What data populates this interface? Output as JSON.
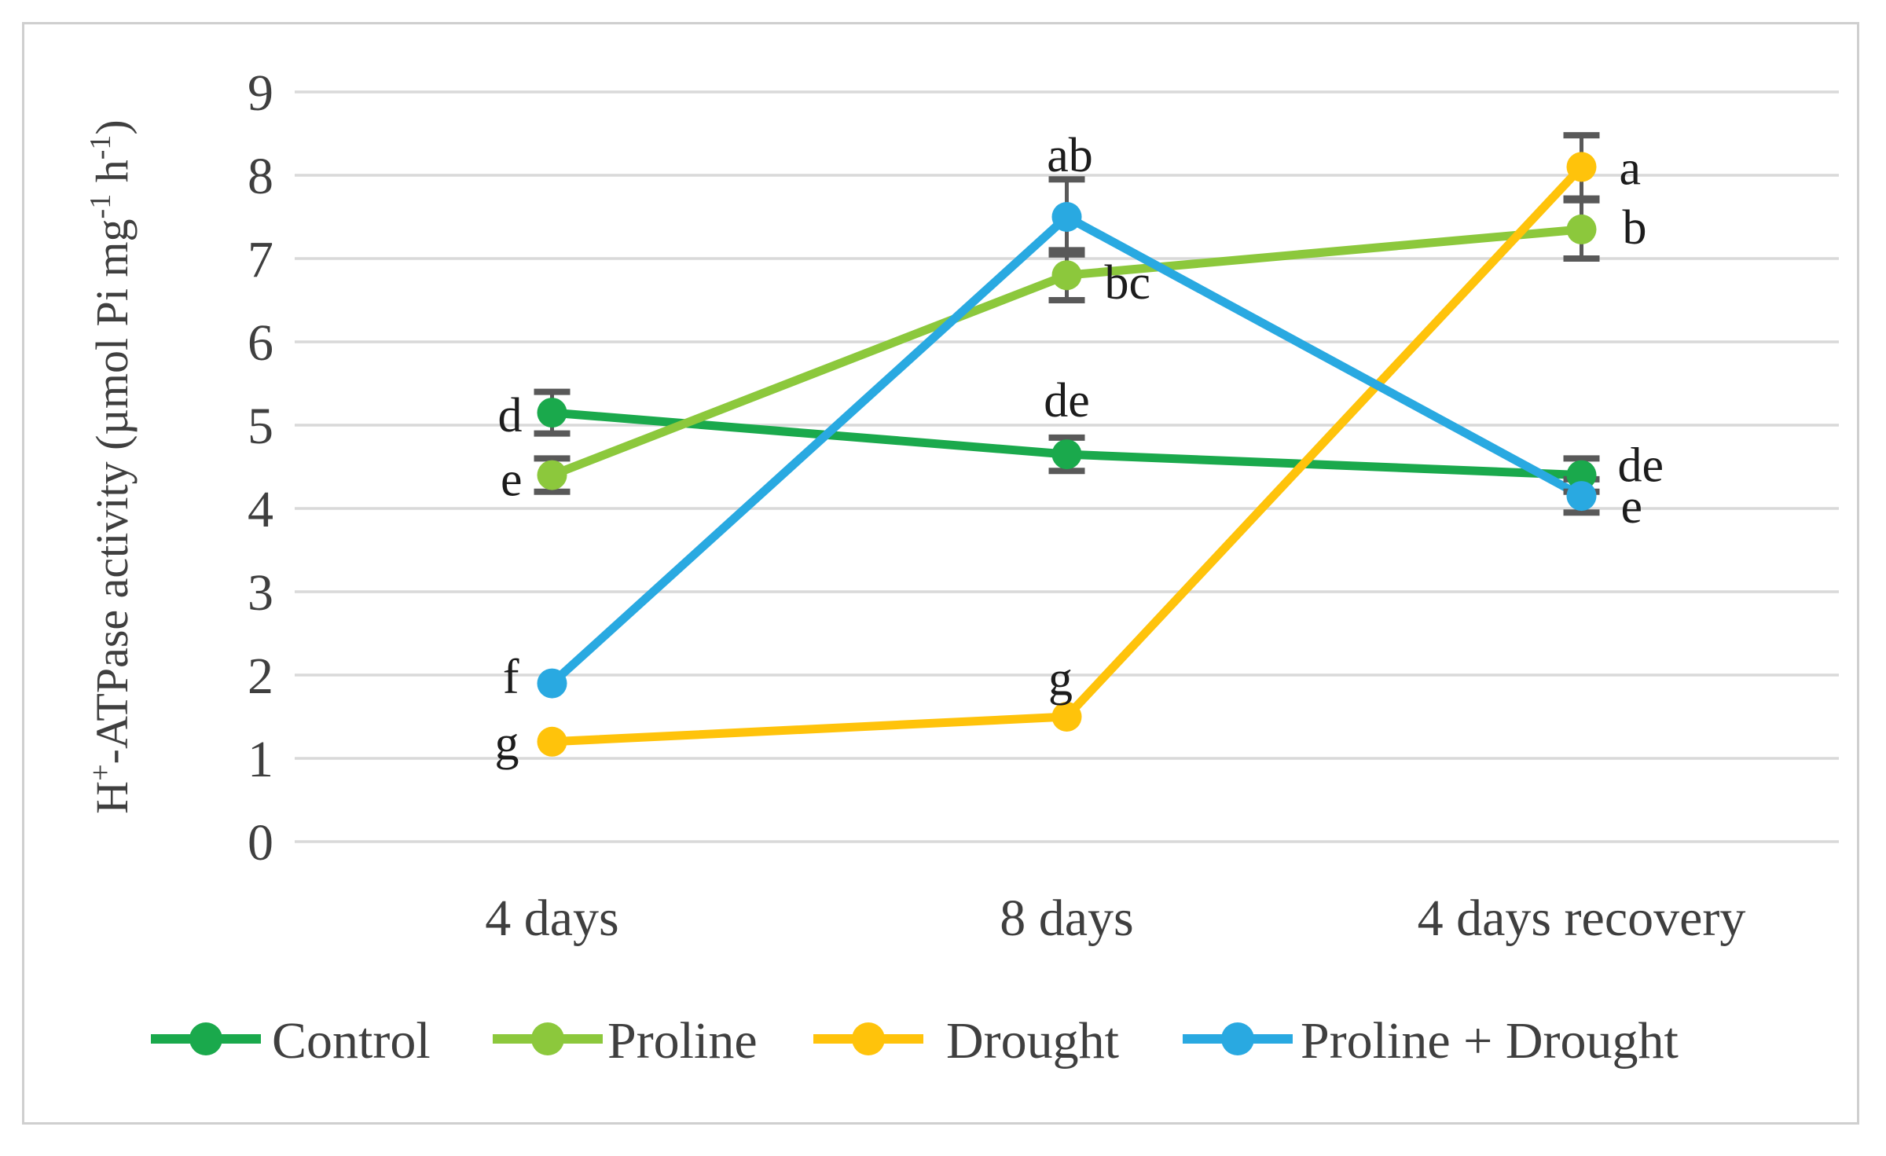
{
  "figure": {
    "background": "#ffffff",
    "border_color": "#cfcfcf"
  },
  "style_colors": {
    "gridline": "#d9d9d9",
    "error_bar": "#595959",
    "axis_text": "#3f3f3f",
    "annotation_text": "#1c1c1c"
  },
  "chart_data": {
    "type": "line",
    "title": "",
    "categories": [
      "4 days",
      "8 days",
      "4 days recovery"
    ],
    "ylabel": "H+-ATPase activity (µmol Pi mg-1 h-1)",
    "ylabel_parts": [
      {
        "text": "H",
        "sup": false
      },
      {
        "text": "+",
        "sup": true
      },
      {
        "text": "-ATPase activity (µmol Pi mg",
        "sup": false
      },
      {
        "text": "-1",
        "sup": true
      },
      {
        "text": " h",
        "sup": false
      },
      {
        "text": "-1",
        "sup": true
      },
      {
        "text": ")",
        "sup": false
      }
    ],
    "ylim": [
      0,
      9
    ],
    "y_ticks": [
      "0",
      "1",
      "2",
      "3",
      "4",
      "5",
      "6",
      "7",
      "8",
      "9"
    ],
    "grid": "horizontal",
    "legend_position": "bottom",
    "series": [
      {
        "name": "Control",
        "color": "#1aa94c",
        "values": [
          5.15,
          4.65,
          4.4
        ],
        "errors": [
          0.25,
          0.2,
          0.2
        ],
        "point_labels": [
          {
            "text": "d",
            "anchor": "end",
            "dx": -38,
            "dy": 24
          },
          {
            "text": "de",
            "anchor": "middle",
            "dx": 0,
            "dy": -48
          },
          {
            "text": "de",
            "anchor": "start",
            "dx": 46,
            "dy": 8
          }
        ]
      },
      {
        "name": "Proline",
        "color": "#8cc83c",
        "values": [
          4.4,
          6.8,
          7.35
        ],
        "errors": [
          0.2,
          0.3,
          0.35
        ],
        "point_labels": [
          {
            "text": "e",
            "anchor": "end",
            "dx": -38,
            "dy": 26
          },
          {
            "text": "bc",
            "anchor": "start",
            "dx": 48,
            "dy": 30
          },
          {
            "text": "b",
            "anchor": "start",
            "dx": 52,
            "dy": 18
          }
        ]
      },
      {
        "name": "Drought",
        "color": "#ffc30b",
        "values": [
          1.2,
          1.5,
          8.1
        ],
        "errors": [
          0,
          0,
          0.38
        ],
        "point_labels": [
          {
            "text": "g",
            "anchor": "end",
            "dx": -42,
            "dy": 22
          },
          {
            "text": "g",
            "anchor": "middle",
            "dx": -8,
            "dy": -28
          },
          {
            "text": "a",
            "anchor": "start",
            "dx": 48,
            "dy": 22
          }
        ]
      },
      {
        "name": "Proline + Drought",
        "color": "#29a9e1",
        "values": [
          1.9,
          7.5,
          4.15
        ],
        "errors": [
          0,
          0.45,
          0.2
        ],
        "point_labels": [
          {
            "text": "f",
            "anchor": "end",
            "dx": -42,
            "dy": 12
          },
          {
            "text": "ab",
            "anchor": "middle",
            "dx": 4,
            "dy": -58
          },
          {
            "text": "e",
            "anchor": "start",
            "dx": 50,
            "dy": 34
          }
        ]
      }
    ]
  }
}
